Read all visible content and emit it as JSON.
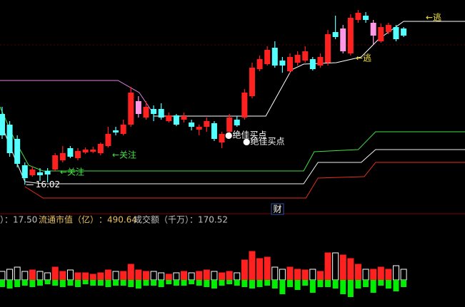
{
  "chart_data": {
    "type": "candlestick",
    "xlim": [
      -0.28,
      61.1
    ],
    "ylim": [
      14.8,
      23.8
    ],
    "open": [
      19.0,
      18.55,
      17.95,
      16.84,
      16.42,
      16.54,
      16.6,
      16.66,
      17.05,
      17.56,
      17.14,
      17.38,
      17.41,
      17.35,
      17.65,
      18.31,
      18.16,
      18.55,
      19.0,
      18.85,
      19.21,
      19.21,
      18.7,
      18.94,
      18.76,
      18.64,
      18.34,
      18.46,
      18.61,
      17.8,
      18.25,
      18.76,
      18.85,
      19.75,
      20.89,
      21.1,
      21.79,
      21.25,
      20.8,
      21.16,
      21.25,
      21.31,
      21.04,
      21.16,
      22.45,
      21.64,
      21.55,
      22.96,
      23.14,
      22.3,
      22.06,
      22.45,
      22.66,
      22.6
    ],
    "high": [
      19.3,
      18.7,
      18.1,
      16.96,
      16.78,
      16.72,
      16.72,
      17.35,
      17.65,
      17.65,
      17.56,
      17.59,
      17.62,
      17.8,
      18.46,
      18.46,
      18.76,
      20.14,
      19.75,
      19.54,
      19.36,
      19.45,
      19.06,
      19.0,
      19.06,
      18.76,
      18.55,
      18.85,
      18.7,
      18.25,
      19.0,
      18.91,
      20.05,
      21.16,
      21.46,
      21.85,
      22.06,
      21.4,
      21.55,
      21.64,
      21.85,
      21.4,
      21.55,
      22.54,
      23.14,
      22.75,
      23.2,
      23.38,
      23.29,
      22.96,
      22.81,
      22.84,
      22.75,
      22.66
    ],
    "low": [
      17.95,
      17.2,
      16.75,
      16.02,
      16.36,
      16.18,
      16.12,
      16.6,
      16.96,
      17.14,
      17.05,
      17.32,
      17.35,
      17.26,
      17.59,
      18.1,
      18.1,
      18.46,
      18.85,
      18.76,
      18.7,
      18.76,
      18.64,
      18.49,
      18.64,
      18.31,
      18.1,
      18.25,
      17.86,
      17.56,
      18.1,
      18.46,
      18.76,
      19.66,
      20.8,
      21.04,
      20.95,
      20.74,
      20.71,
      21.04,
      21.16,
      20.83,
      20.95,
      21.04,
      22.15,
      21.55,
      21.46,
      22.84,
      22.84,
      21.94,
      22.0,
      22.36,
      22.06,
      22.24
    ],
    "close": [
      18.1,
      17.35,
      16.9,
      16.3,
      16.66,
      16.42,
      16.45,
      17.26,
      17.35,
      17.2,
      17.44,
      17.5,
      17.5,
      17.74,
      18.16,
      18.22,
      18.55,
      19.9,
      19.54,
      19.3,
      19.0,
      18.85,
      18.94,
      18.55,
      18.91,
      18.46,
      18.46,
      18.7,
      17.95,
      18.16,
      18.85,
      18.52,
      19.9,
      20.95,
      21.31,
      21.7,
      21.04,
      21.04,
      21.4,
      21.49,
      21.64,
      20.89,
      21.4,
      22.36,
      22.24,
      22.6,
      23.05,
      23.26,
      22.96,
      22.84,
      22.66,
      22.75,
      22.15,
      22.3
    ],
    "up_color": "#ff2020",
    "down_color": "#54ffff",
    "highlight_color": "#ff99e6",
    "highlight": [
      18,
      45,
      49
    ],
    "lines": [
      {
        "color": "#e080e0",
        "x": [
          -0.28,
          15.3,
          18.1,
          20.0
        ],
        "values": [
          20.41,
          20.41,
          19.9,
          19.0
        ]
      },
      {
        "color": "#ffffff",
        "x": [
          20.0,
          34.8,
          38.2,
          39.8,
          44.1,
          47.4,
          49.7,
          53.0,
          56.3,
          61.1
        ],
        "values": [
          18.91,
          18.91,
          20.86,
          21.1,
          21.16,
          21.4,
          22.15,
          22.9,
          22.9,
          22.9
        ]
      },
      {
        "color": "#40e040",
        "x": [
          -0.28,
          1.6,
          3.5,
          5.4,
          39.8,
          41.2,
          47.0,
          49.3,
          61.1
        ],
        "values": [
          19.3,
          17.95,
          16.84,
          16.6,
          16.6,
          17.41,
          17.5,
          18.25,
          18.25
        ]
      },
      {
        "color": "#f0f0f0",
        "x": [
          -0.28,
          1.6,
          3.0,
          5.4,
          39.8,
          41.7,
          47.4,
          49.3,
          61.1
        ],
        "values": [
          18.7,
          17.2,
          16.15,
          16.06,
          16.06,
          16.96,
          16.96,
          17.5,
          17.5
        ]
      },
      {
        "color": "#e03020",
        "x": [
          3.0,
          5.4,
          40.1,
          41.7,
          47.8,
          49.3,
          61.1
        ],
        "values": [
          15.94,
          15.46,
          15.46,
          16.3,
          16.36,
          16.96,
          16.96
        ]
      }
    ],
    "annotations": [
      "←关注",
      "←关注",
      "●绝佳买点",
      "●绝佳买点",
      "←逃",
      "←逃"
    ],
    "volume": {
      "ylim": [
        -38,
        63
      ],
      "values": [
        12,
        15,
        18,
        12,
        14,
        12,
        10,
        18,
        12,
        14,
        10,
        10,
        8,
        10,
        14,
        12,
        12,
        22,
        14,
        12,
        12,
        10,
        8,
        10,
        12,
        10,
        12,
        14,
        12,
        10,
        12,
        10,
        28,
        40,
        30,
        32,
        18,
        15,
        18,
        15,
        14,
        15,
        12,
        38,
        38,
        35,
        30,
        22,
        15,
        15,
        18,
        15,
        20,
        15
      ],
      "indicator": [
        -10,
        -12,
        -10,
        -8,
        -10,
        -8,
        -6,
        -8,
        -10,
        -8,
        -10,
        -6,
        -8,
        -8,
        -10,
        -8,
        -8,
        -10,
        -12,
        -8,
        -8,
        -10,
        -6,
        -8,
        -8,
        -6,
        -8,
        -10,
        -12,
        -8,
        -6,
        -8,
        -10,
        -12,
        -10,
        -8,
        -12,
        -20,
        -10,
        -14,
        -8,
        -18,
        -10,
        -10,
        -12,
        -20,
        -24,
        -12,
        -10,
        -18,
        -8,
        -12,
        -16,
        -10
      ],
      "indicator_color": "#00ee00"
    }
  },
  "info_bar": [
    "）：17.50",
    "流通市值（亿）",
    "：490.64",
    "成交额（千万）：170.52"
  ],
  "badge": "财"
}
